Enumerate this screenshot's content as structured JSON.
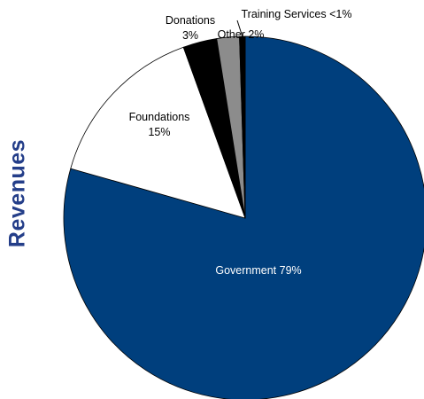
{
  "chart_data": {
    "type": "pie",
    "title": "Revenues",
    "start_angle_deg": 0,
    "direction": "clockwise",
    "slices": [
      {
        "label": "Government 79%",
        "value": 79,
        "color": "#003F7D",
        "label_color": "#FFFFFF"
      },
      {
        "label": "Foundations\n15%",
        "value": 15,
        "color": "#FFFFFF",
        "label_color": "#000000"
      },
      {
        "label": "Donations\n3%",
        "value": 3,
        "color": "#000000",
        "label_color": "#000000"
      },
      {
        "label": "Other 2%",
        "value": 2,
        "color": "#8C8C8C",
        "label_color": "#000000"
      },
      {
        "label": "Training Services <1%",
        "value": 0.5,
        "color": "#000000",
        "label_color": "#000000"
      }
    ]
  },
  "colors": {
    "title": "#243E89",
    "slice_border": "#000000",
    "leader_line": "#000000"
  }
}
